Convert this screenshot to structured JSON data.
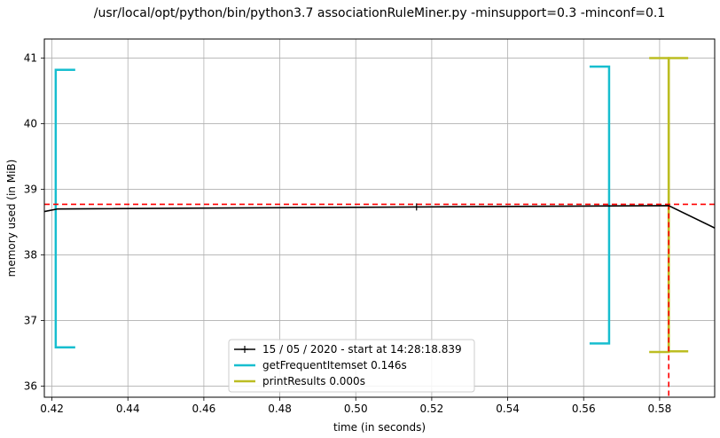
{
  "chart_data": {
    "type": "line",
    "title": "/usr/local/opt/python/bin/python3.7 associationRuleMiner.py -minsupport=0.3 -minconf=0.1",
    "xlabel": "time (in seconds)",
    "ylabel": "memory used (in MiB)",
    "xlim": [
      0.418,
      0.5945
    ],
    "ylim": [
      35.83,
      41.29
    ],
    "grid": true,
    "legend_position": "bottom-center",
    "x_ticks": [
      0.42,
      0.44,
      0.46,
      0.48,
      0.5,
      0.52,
      0.54,
      0.56,
      0.58
    ],
    "x_tick_labels": [
      "0.42",
      "0.44",
      "0.46",
      "0.48",
      "0.50",
      "0.52",
      "0.54",
      "0.56",
      "0.58"
    ],
    "y_ticks": [
      36,
      37,
      38,
      39,
      40,
      41
    ],
    "y_tick_labels": [
      "36",
      "37",
      "38",
      "39",
      "40",
      "41"
    ],
    "memory_series": {
      "name": "15 / 05 / 2020 - start at 14:28:18.839",
      "color": "#000000",
      "x": [
        0.418,
        0.4215,
        0.516,
        0.5824,
        0.5945
      ],
      "y": [
        38.66,
        38.7,
        38.73,
        38.75,
        38.41
      ],
      "marker_x": [
        0.516
      ],
      "marker_y": [
        38.73
      ]
    },
    "max_memory_line": {
      "y": 38.77,
      "x": 0.5824,
      "color": "#ff0000"
    },
    "function_brackets": [
      {
        "name": "getFrequentItemset 0.146s",
        "color": "#17becf",
        "start": 0.421,
        "end": 0.5667,
        "start_ymin": 36.59,
        "start_ymax": 40.82,
        "end_ymin": 36.65,
        "end_ymax": 40.87
      },
      {
        "name": "printResults 0.000s",
        "color": "#bcbd22",
        "start": 0.5824,
        "end": 0.5824,
        "start_ymin": 36.53,
        "start_ymax": 41.0,
        "end_ymin": 36.52,
        "end_ymax": 41.0
      }
    ]
  }
}
